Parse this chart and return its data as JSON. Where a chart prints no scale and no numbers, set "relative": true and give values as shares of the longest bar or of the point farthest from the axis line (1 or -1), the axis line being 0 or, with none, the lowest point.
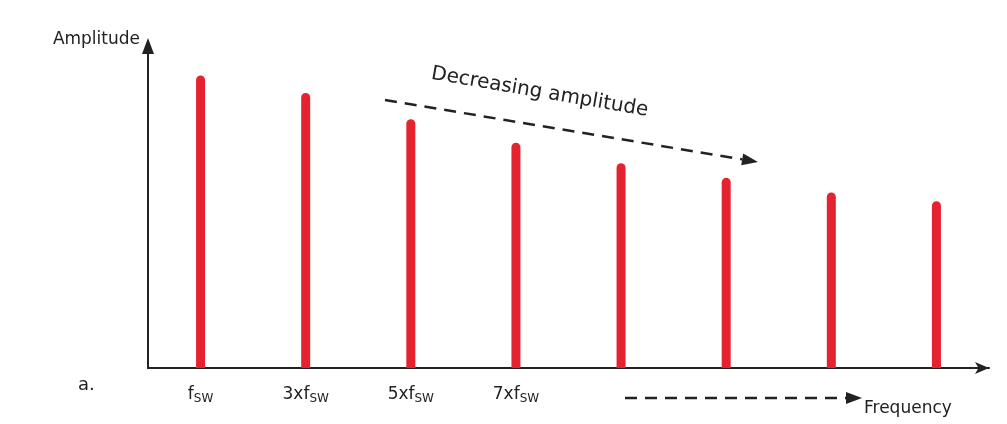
{
  "chart_data": {
    "type": "bar",
    "relative": true,
    "xlabel": "Frequency",
    "ylabel": "Amplitude",
    "categories": [
      "f$_{SW}$",
      "3xf$_{SW}$",
      "5xf$_{SW}$",
      "7xf$_{SW}$",
      null,
      null,
      null,
      null
    ],
    "values": [
      1,
      0.94,
      0.85,
      0.77,
      0.7,
      0.65,
      0.6,
      0.57
    ],
    "color": "#e52330",
    "annotations": [
      "Decreasing amplitude",
      "a."
    ]
  }
}
